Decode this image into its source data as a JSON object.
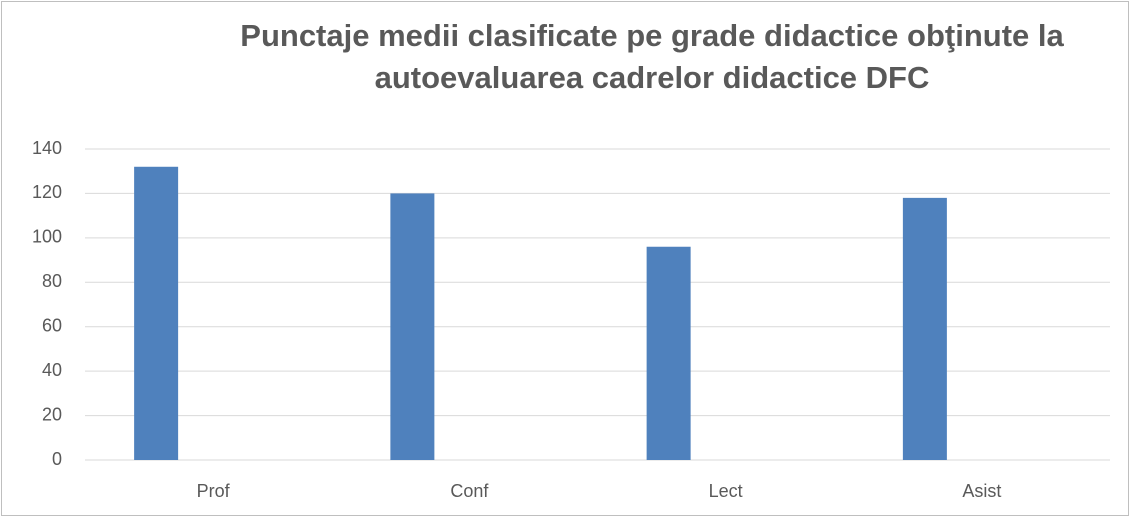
{
  "chart_data": {
    "type": "bar",
    "title": [
      "Punctaje medii clasificate pe grade didactice obţinute la",
      "autoevaluarea cadrelor didactice DFC"
    ],
    "categories": [
      "Prof",
      "Conf",
      "Lect",
      "Asist"
    ],
    "values": [
      132,
      120,
      96,
      118
    ],
    "color": "#4f81bd",
    "ylim": [
      0,
      140
    ],
    "yticks": [
      0,
      20,
      40,
      60,
      80,
      100,
      120,
      140
    ],
    "grid": true
  }
}
